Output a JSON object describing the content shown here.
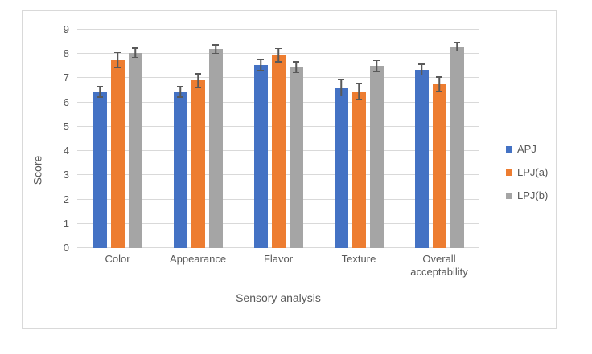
{
  "figure": {
    "background": "#ffffff",
    "border_color": "#d9d9d9",
    "text_color": "#595959",
    "gridline_color": "#d9d9d9",
    "error_bar_color": "#595959"
  },
  "chart_data": {
    "type": "bar",
    "title": "",
    "xlabel": "Sensory analysis",
    "ylabel": "Score",
    "ylim": [
      0,
      9
    ],
    "yticks": [
      0,
      1,
      2,
      3,
      4,
      5,
      6,
      7,
      8,
      9
    ],
    "grid": true,
    "legend_position": "right",
    "error_bars": true,
    "categories": [
      "Color",
      "Appearance",
      "Flavor",
      "Texture",
      "Overall acceptability"
    ],
    "series": [
      {
        "name": "APJ",
        "color": "#4472c4",
        "values": [
          6.45,
          6.45,
          7.55,
          6.6,
          7.35
        ],
        "errors": [
          0.25,
          0.25,
          0.25,
          0.35,
          0.25
        ]
      },
      {
        "name": "LPJ(a)",
        "color": "#ed7d31",
        "values": [
          7.75,
          6.9,
          7.95,
          6.45,
          6.75
        ],
        "errors": [
          0.33,
          0.3,
          0.3,
          0.35,
          0.33
        ]
      },
      {
        "name": "LPJ(b)",
        "color": "#a5a5a5",
        "values": [
          8.05,
          8.2,
          7.45,
          7.5,
          8.3
        ],
        "errors": [
          0.22,
          0.2,
          0.25,
          0.25,
          0.2
        ]
      }
    ]
  }
}
